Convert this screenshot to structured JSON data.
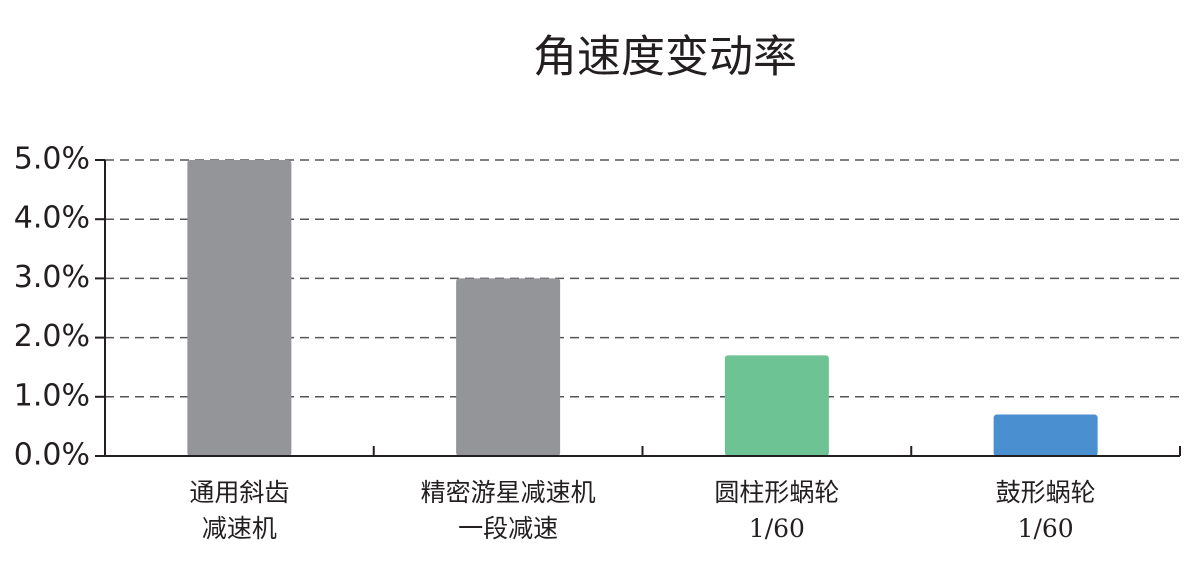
{
  "chart_data": {
    "type": "bar",
    "title": "角速度变动率",
    "categories": [
      "通用斜齿\n减速机",
      "精密游星减速机\n一段减速",
      "圆柱形蜗轮\n1/60",
      "鼓形蜗轮\n1/60"
    ],
    "values": [
      5.0,
      3.0,
      1.7,
      0.7
    ],
    "colors": [
      "#939598",
      "#939598",
      "#6dc393",
      "#4a8fd0"
    ],
    "ylim": [
      0,
      5
    ],
    "yticks": [
      {
        "value": 0,
        "label": "0.0%"
      },
      {
        "value": 1,
        "label": "1.0%"
      },
      {
        "value": 2,
        "label": "2.0%"
      },
      {
        "value": 3,
        "label": "3.0%"
      },
      {
        "value": 4,
        "label": "4.0%"
      },
      {
        "value": 5,
        "label": "5.0%"
      }
    ],
    "grid": true
  }
}
